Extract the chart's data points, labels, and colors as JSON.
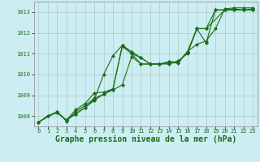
{
  "title": "Graphe pression niveau de la mer (hPa)",
  "title_fontsize": 7.0,
  "bg_color": "#cceef2",
  "line_color": "#1a6e1a",
  "grid_color": "#b0c8c8",
  "xlim": [
    -0.5,
    23.5
  ],
  "ylim": [
    1007.5,
    1013.5
  ],
  "yticks": [
    1008,
    1009,
    1010,
    1011,
    1012,
    1013
  ],
  "xticks": [
    0,
    1,
    2,
    3,
    4,
    5,
    6,
    7,
    8,
    9,
    10,
    11,
    12,
    13,
    14,
    15,
    16,
    17,
    18,
    19,
    20,
    21,
    22,
    23
  ],
  "tick_fontsize": 5.0,
  "lines": [
    {
      "x": [
        0,
        1,
        2,
        3,
        4,
        5,
        6,
        7,
        8,
        9,
        10,
        11,
        12,
        13,
        14,
        15,
        16,
        17,
        18,
        20,
        21,
        22,
        23
      ],
      "y": [
        1007.7,
        1008.0,
        1008.2,
        1007.8,
        1008.1,
        1008.4,
        1008.8,
        1010.0,
        1010.9,
        1011.4,
        1011.0,
        1010.5,
        1010.5,
        1010.5,
        1010.6,
        1010.6,
        1011.1,
        1012.2,
        1012.2,
        1013.1,
        1013.15,
        1013.1,
        1013.15
      ]
    },
    {
      "x": [
        0,
        2,
        3,
        4,
        5,
        6,
        7,
        8,
        9,
        10,
        11,
        12,
        13,
        14,
        15,
        16,
        17,
        18,
        19,
        20,
        21,
        22,
        23
      ],
      "y": [
        1007.7,
        1008.2,
        1007.75,
        1008.2,
        1008.5,
        1008.85,
        1009.05,
        1009.25,
        1009.5,
        1010.85,
        1010.5,
        1010.5,
        1010.5,
        1010.55,
        1010.55,
        1011.1,
        1011.45,
        1011.6,
        1012.2,
        1013.15,
        1013.2,
        1013.2,
        1013.2
      ]
    },
    {
      "x": [
        0,
        1,
        2,
        3,
        4,
        5,
        6,
        7,
        8,
        9,
        10,
        11,
        12,
        13,
        14,
        15,
        16,
        17,
        18,
        19,
        20,
        21,
        22,
        23
      ],
      "y": [
        1007.7,
        1008.0,
        1008.15,
        1007.8,
        1008.1,
        1008.4,
        1008.75,
        1009.05,
        1009.3,
        1011.35,
        1011.0,
        1010.8,
        1010.5,
        1010.5,
        1010.6,
        1010.6,
        1011.05,
        1012.2,
        1011.5,
        1013.1,
        1013.1,
        1013.1,
        1013.1,
        1013.1
      ]
    },
    {
      "x": [
        3,
        4,
        5,
        6,
        7,
        8,
        9,
        10,
        11,
        12,
        13,
        14,
        15,
        16,
        17,
        18,
        19,
        20,
        21,
        22,
        23
      ],
      "y": [
        1007.8,
        1008.3,
        1008.6,
        1009.1,
        1009.15,
        1009.3,
        1011.4,
        1011.1,
        1010.8,
        1010.5,
        1010.5,
        1010.5,
        1010.65,
        1011.0,
        1012.2,
        1012.2,
        1013.1,
        1013.1,
        1013.1,
        1013.1,
        1013.1
      ]
    }
  ]
}
